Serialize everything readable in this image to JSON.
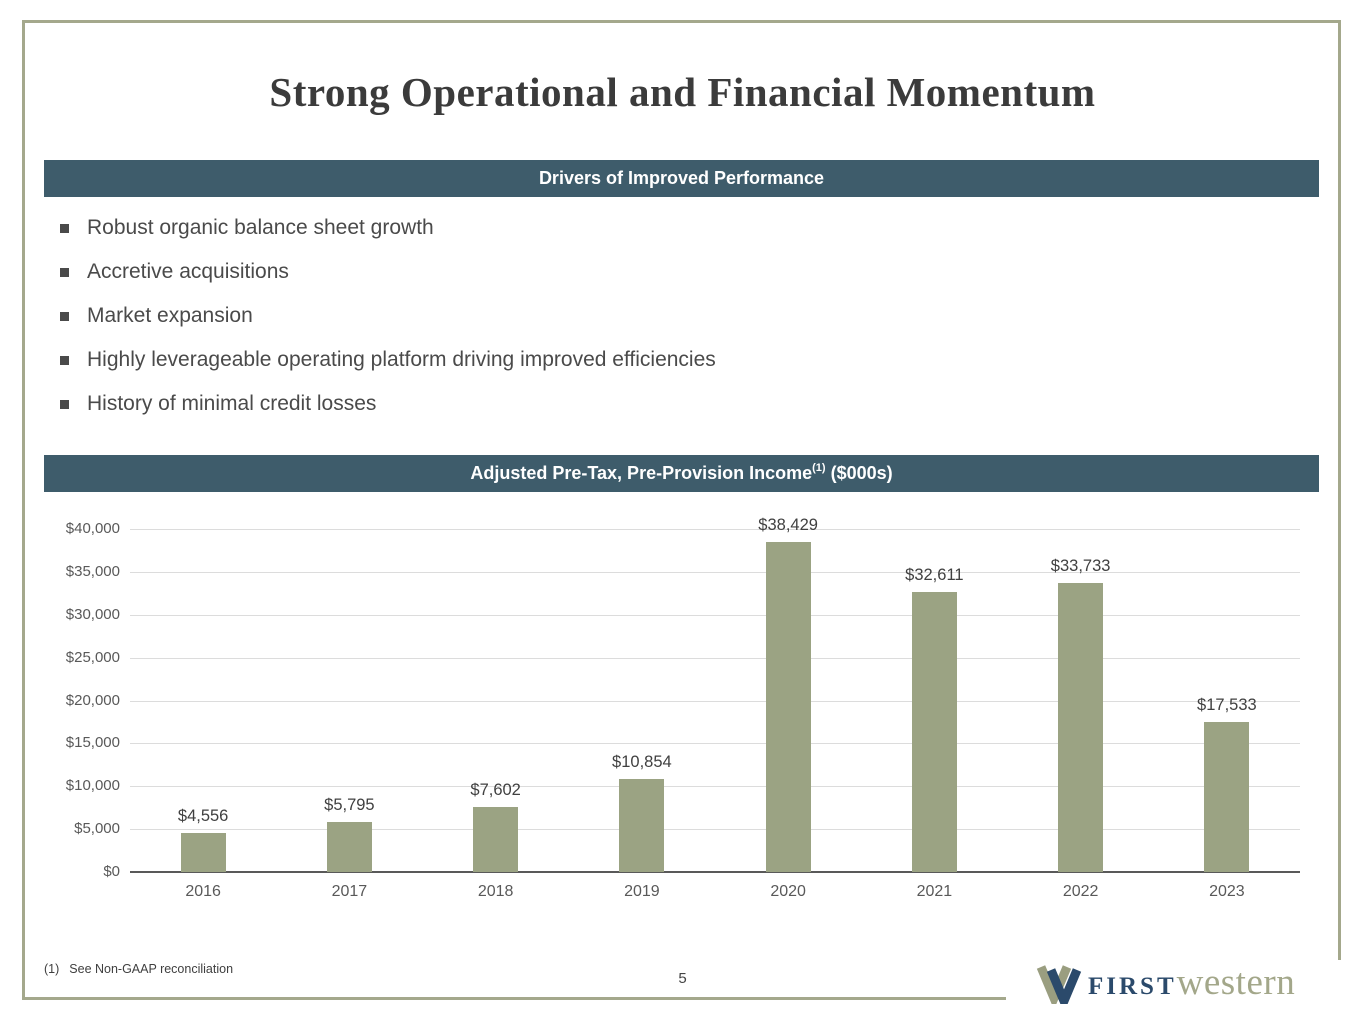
{
  "slide": {
    "title": "Strong Operational and Financial Momentum",
    "page_number": "5",
    "footnote_marker": "(1)",
    "footnote_text": "See Non-GAAP reconciliation"
  },
  "drivers_section": {
    "header": "Drivers of Improved Performance",
    "bullets": [
      "Robust organic balance sheet growth",
      "Accretive acquisitions",
      "Market expansion",
      "Highly leverageable operating platform driving improved efficiencies",
      "History of minimal credit losses"
    ]
  },
  "chart_section": {
    "header_prefix": "Adjusted Pre-Tax, Pre-Provision Income",
    "header_superscript": "(1)",
    "header_suffix": " ($000s)"
  },
  "chart_data": {
    "type": "bar",
    "title": "Adjusted Pre-Tax, Pre-Provision Income ($000s)",
    "categories": [
      "2016",
      "2017",
      "2018",
      "2019",
      "2020",
      "2021",
      "2022",
      "2023"
    ],
    "values": [
      4556,
      5795,
      7602,
      10854,
      38429,
      32611,
      33733,
      17533
    ],
    "value_labels": [
      "$4,556",
      "$5,795",
      "$7,602",
      "$10,854",
      "$38,429",
      "$32,611",
      "$33,733",
      "$17,533"
    ],
    "xlabel": "",
    "ylabel": "",
    "ylim": [
      0,
      40000
    ],
    "ytick_interval": 5000,
    "ytick_labels": [
      "$0",
      "$5,000",
      "$10,000",
      "$15,000",
      "$20,000",
      "$25,000",
      "$30,000",
      "$35,000",
      "$40,000"
    ],
    "grid": true,
    "legend": false,
    "bar_color": "#9BA383"
  },
  "logo": {
    "brand_first": "FIRST",
    "brand_second": "western"
  },
  "colors": {
    "banner_background": "#3E5C6B",
    "banner_text": "#FFFFFF",
    "bar_fill": "#9BA383",
    "frame_border": "#A4A88C",
    "title_text": "#3B3B3B",
    "body_text": "#4A4A4A",
    "axis_text": "#595959",
    "gridline": "#DCDCDC",
    "logo_navy": "#2B4A6B",
    "logo_olive": "#A3A78A"
  }
}
